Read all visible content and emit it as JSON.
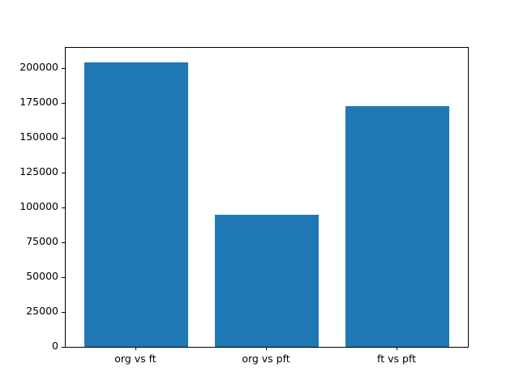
{
  "chart_data": {
    "type": "bar",
    "title": "",
    "xlabel": "",
    "ylabel": "",
    "categories": [
      "org vs ft",
      "org vs pft",
      "ft vs pft"
    ],
    "values": [
      204000,
      95000,
      173000
    ],
    "ylim": [
      0,
      214700
    ],
    "yticks": [
      0,
      25000,
      50000,
      75000,
      100000,
      125000,
      150000,
      175000,
      200000
    ],
    "grid": false,
    "legend": "none",
    "bar_color": "#1f77b4"
  },
  "colors": {
    "background": "#ffffff",
    "spine": "#000000",
    "tick_text": "#000000"
  }
}
